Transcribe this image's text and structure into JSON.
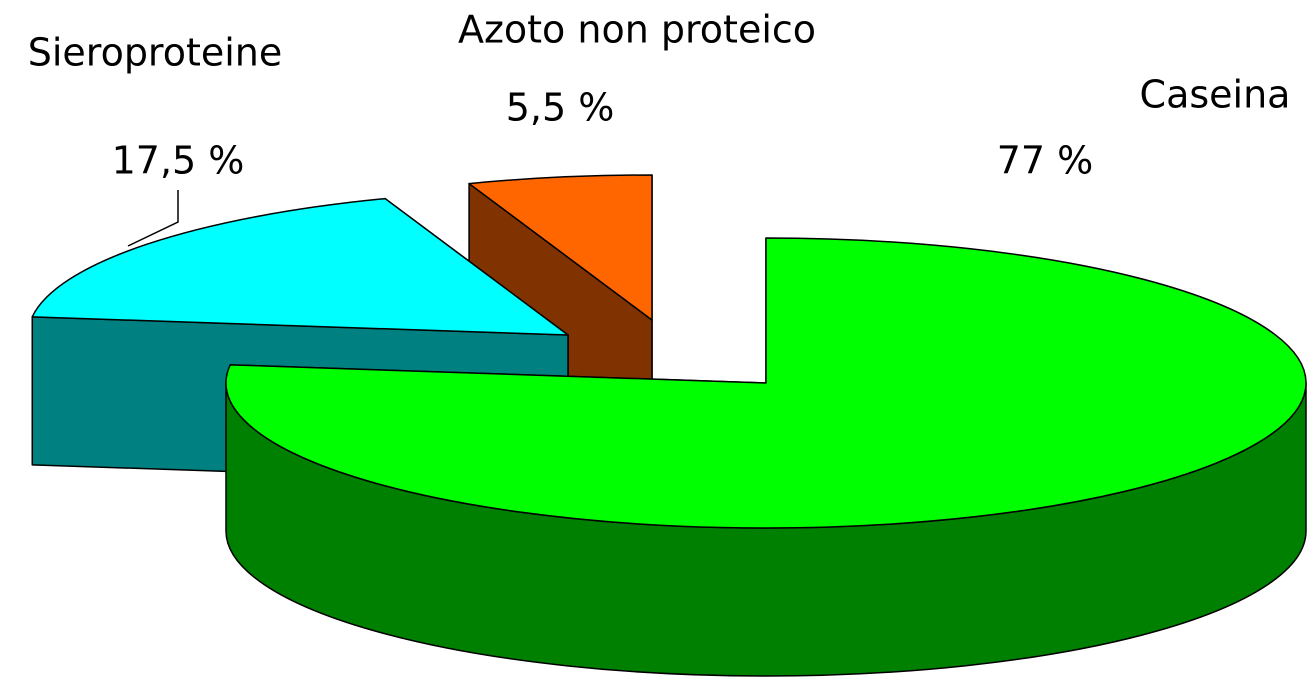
{
  "chart_data": {
    "type": "pie3d",
    "categories": [
      "Caseina",
      "Sieroproteine",
      "Azoto non proteico"
    ],
    "values": [
      77,
      17.5,
      5.5
    ],
    "value_labels": [
      "77 %",
      "17,5 %",
      "5,5 %"
    ],
    "colors": [
      "#00ff00",
      "#00ffff",
      "#ff6600"
    ],
    "side_colors": [
      "#008000",
      "#008080",
      "#803300"
    ]
  }
}
